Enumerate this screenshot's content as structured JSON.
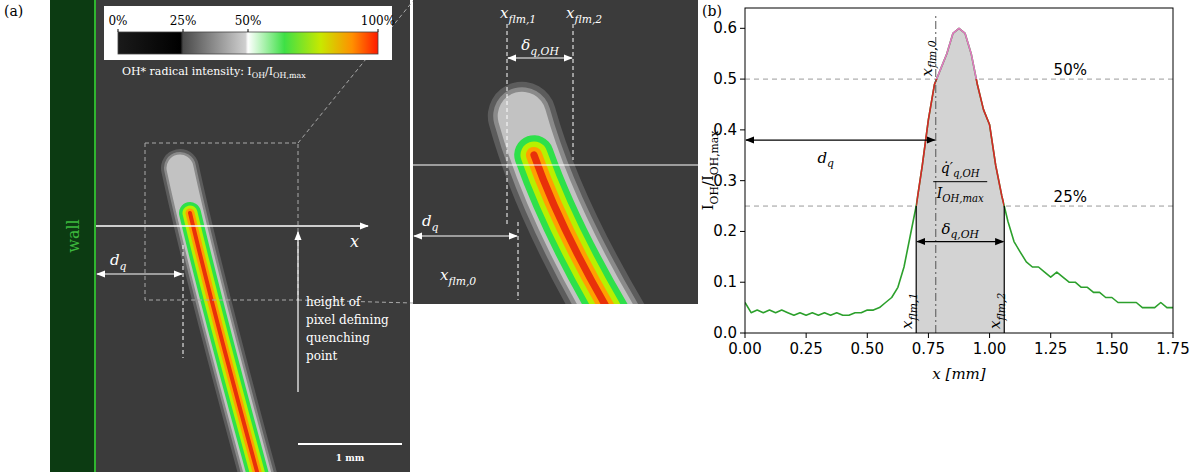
{
  "panel_a": {
    "letter": "(a)",
    "wall": "wall",
    "colorbar": {
      "range": [
        0,
        100
      ],
      "ticks": [
        {
          "value": 0,
          "label": "0%"
        },
        {
          "value": 25,
          "label": "25%"
        },
        {
          "value": 50,
          "label": "50%"
        },
        {
          "value": 100,
          "label": "100%"
        }
      ],
      "title": [
        {
          "t": "OH* radical intensity: I"
        },
        {
          "t": "OH",
          "sub": true
        },
        {
          "t": "/I"
        },
        {
          "t": "OH,max",
          "sub": true
        }
      ]
    },
    "axis_label": "x",
    "d_q": [
      {
        "t": "d"
      },
      {
        "t": "q",
        "sub": true
      }
    ],
    "height_label": [
      "height of",
      "pixel defining",
      "quenching",
      "point"
    ],
    "scale_bar": "1 mm",
    "inset": {
      "x_flm_1": [
        {
          "t": "x"
        },
        {
          "t": "flm,1",
          "sub": true
        }
      ],
      "x_flm_2": [
        {
          "t": "x"
        },
        {
          "t": "flm,2",
          "sub": true
        }
      ],
      "x_flm_0": [
        {
          "t": "x"
        },
        {
          "t": "flm,0",
          "sub": true
        }
      ],
      "delta": [
        {
          "t": "δ"
        },
        {
          "t": "q,OH",
          "sub": true
        }
      ],
      "d_q": [
        {
          "t": "d"
        },
        {
          "t": "q",
          "sub": true
        }
      ]
    }
  },
  "chart_data": {
    "type": "line",
    "letter": "(b)",
    "x_label": [
      {
        "t": "x [mm]"
      }
    ],
    "y_label": [
      {
        "t": "I"
      },
      {
        "t": "OH",
        "sub": true
      },
      {
        "t": "/I"
      },
      {
        "t": "OH,max",
        "sub": true
      }
    ],
    "x": [
      0,
      0.025,
      0.05,
      0.075,
      0.1,
      0.125,
      0.15,
      0.175,
      0.2,
      0.225,
      0.25,
      0.275,
      0.3,
      0.325,
      0.35,
      0.375,
      0.4,
      0.425,
      0.45,
      0.475,
      0.5,
      0.525,
      0.55,
      0.575,
      0.6,
      0.625,
      0.65,
      0.675,
      0.7,
      0.725,
      0.75,
      0.775,
      0.8,
      0.825,
      0.85,
      0.875,
      0.9,
      0.925,
      0.95,
      0.975,
      1.0,
      1.025,
      1.05,
      1.075,
      1.1,
      1.125,
      1.15,
      1.175,
      1.2,
      1.225,
      1.25,
      1.275,
      1.3,
      1.325,
      1.35,
      1.375,
      1.4,
      1.425,
      1.45,
      1.475,
      1.5,
      1.525,
      1.55,
      1.575,
      1.6,
      1.625,
      1.65,
      1.675,
      1.7,
      1.725,
      1.75
    ],
    "series": [
      {
        "color": "#2ca02c",
        "values": [
          0.06,
          0.04,
          0.045,
          0.04,
          0.045,
          0.04,
          0.045,
          0.04,
          0.035,
          0.04,
          0.035,
          0.04,
          0.035,
          0.04,
          0.035,
          0.04,
          0.035,
          0.035,
          0.04,
          0.04,
          0.045,
          0.045,
          0.05,
          0.06,
          0.07,
          0.09,
          0.13,
          0.19,
          0.25,
          0.33,
          0.42,
          0.49,
          0.52,
          0.55,
          0.59,
          0.6,
          0.59,
          0.55,
          0.49,
          0.44,
          0.41,
          0.33,
          0.27,
          0.22,
          0.18,
          0.16,
          0.14,
          0.13,
          0.13,
          0.12,
          0.11,
          0.12,
          0.11,
          0.1,
          0.1,
          0.09,
          0.09,
          0.08,
          0.08,
          0.07,
          0.07,
          0.06,
          0.06,
          0.06,
          0.06,
          0.05,
          0.05,
          0.05,
          0.06,
          0.05,
          0.05
        ]
      }
    ],
    "xlim": [
      0,
      1.75
    ],
    "ylim": [
      0,
      0.64
    ],
    "xticks": [
      {
        "value": 0,
        "label": "0.00"
      },
      {
        "value": 0.25,
        "label": "0.25"
      },
      {
        "value": 0.5,
        "label": "0.50"
      },
      {
        "value": 0.75,
        "label": "0.75"
      },
      {
        "value": 1,
        "label": "1.00"
      },
      {
        "value": 1.25,
        "label": "1.25"
      },
      {
        "value": 1.5,
        "label": "1.50"
      },
      {
        "value": 1.75,
        "label": "1.75"
      }
    ],
    "yticks": [
      {
        "value": 0,
        "label": "0.0"
      },
      {
        "value": 0.1,
        "label": "0.1"
      },
      {
        "value": 0.2,
        "label": "0.2"
      },
      {
        "value": 0.3,
        "label": "0.3"
      },
      {
        "value": 0.4,
        "label": "0.4"
      },
      {
        "value": 0.5,
        "label": "0.5"
      },
      {
        "value": 0.6,
        "label": "0.6"
      }
    ],
    "thresholds": [
      {
        "value": 0.5,
        "label": "50%"
      },
      {
        "value": 0.25,
        "label": "25%"
      }
    ],
    "markers": {
      "x_flm_0": {
        "value": 0.78,
        "label": [
          {
            "t": "x"
          },
          {
            "t": "flm,0",
            "sub": true
          }
        ]
      },
      "x_flm_1": {
        "value": 0.7,
        "label": [
          {
            "t": "x"
          },
          {
            "t": "flm,1",
            "sub": true
          }
        ]
      },
      "x_flm_2": {
        "value": 1.06,
        "label": [
          {
            "t": "x"
          },
          {
            "t": "flm,2",
            "sub": true
          }
        ]
      }
    },
    "d_q": {
      "label": [
        {
          "t": "d"
        },
        {
          "t": "q",
          "sub": true
        }
      ]
    },
    "delta": {
      "label": [
        {
          "t": "δ"
        },
        {
          "t": "q,OH",
          "sub": true
        }
      ]
    },
    "fraction": {
      "numerator": [
        {
          "t": "q̇′"
        },
        {
          "t": "q,OH",
          "sub": true
        }
      ],
      "denominator": [
        {
          "t": "I"
        },
        {
          "t": "OH,max",
          "sub": true
        }
      ]
    }
  }
}
